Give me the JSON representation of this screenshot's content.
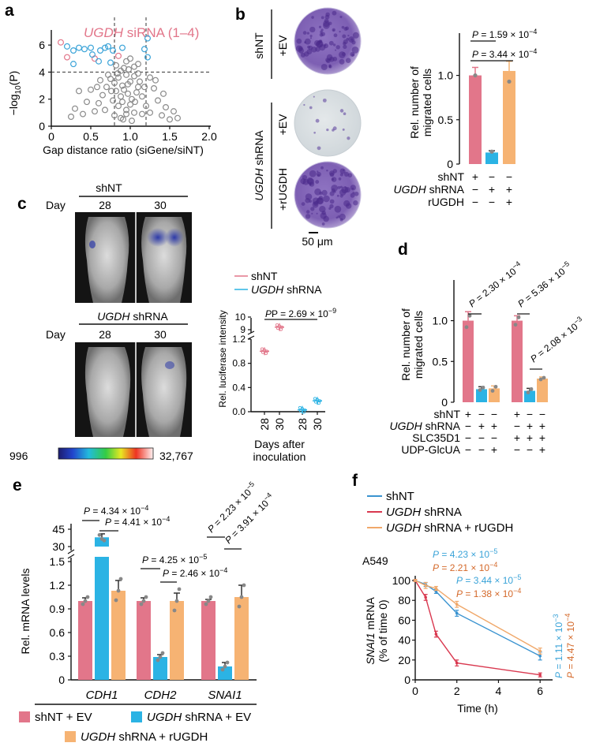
{
  "panels": {
    "a": "a",
    "b": "b",
    "c": "c",
    "d": "d",
    "e": "e",
    "f": "f"
  },
  "colors": {
    "pink": "#e2768a",
    "blue": "#2bb3e4",
    "orange": "#f6b373",
    "red": "#d9384f",
    "orange_line": "#f0a86a",
    "blue_line": "#3a93d0",
    "grey": "#8a8a8a",
    "pval_blue": "#3aa3d8",
    "pval_orange": "#d4692a"
  },
  "panel_a": {
    "title_gene": "UGDH",
    "title_rest": " siRNA (1–4)",
    "ylabel_main": "−log",
    "ylabel_sub": "10",
    "ylabel_paren": "(P)",
    "xlabel": "Gap distance ratio (siGene/siNT)",
    "xticks": [
      "0",
      "0.5",
      "1.0",
      "1.5",
      "2.0"
    ],
    "yticks": [
      "0",
      "2",
      "4",
      "6"
    ]
  },
  "panel_b": {
    "row1_group": "shNT",
    "row1_label": "+EV",
    "row2_group_italic": "UGDH",
    "row2_group_rest": " shRNA",
    "row2_label": "+EV",
    "row3_label": "+rUGDH",
    "scale_bar": "50 μm",
    "ylabel_line1": "Rel. number of",
    "ylabel_line2": "migrated cells",
    "yticks": [
      "0",
      "0.5",
      "1.0"
    ],
    "p1": "P = 1.59 × 10",
    "p1_exp": "−4",
    "p2": "P = 3.44 × 10",
    "p2_exp": "−4",
    "rows": [
      {
        "label": "shNT",
        "italic": "",
        "signs": [
          "+",
          "−",
          "−"
        ]
      },
      {
        "label": " shRNA",
        "italic": "UGDH",
        "signs": [
          "−",
          "+",
          "+"
        ]
      },
      {
        "label": "rUGDH",
        "italic": "",
        "signs": [
          "−",
          "−",
          "+"
        ]
      }
    ]
  },
  "panel_c": {
    "top_group": "shNT",
    "bottom_group_italic": "UGDH",
    "bottom_group_rest": " shRNA",
    "day_label": "Day",
    "days": [
      "28",
      "30"
    ],
    "scale_min": "996",
    "scale_max": "32,767",
    "legend": [
      {
        "name": "shNT"
      },
      {
        "name_italic": "UGDH",
        "name_rest": " shRNA"
      }
    ],
    "p": "P = 2.69 × 10",
    "p_exp": "−9",
    "ylabel": "Rel. luciferase intensity",
    "yticks_low": [
      "0.0",
      "0.4",
      "0.8",
      "1.2"
    ],
    "yticks_high": [
      "9",
      "10"
    ],
    "xticks": [
      "28",
      "30",
      "28",
      "30"
    ],
    "xlabel_line1": "Days after",
    "xlabel_line2": "inoculation"
  },
  "panel_d": {
    "ylabel_line1": "Rel. number of",
    "ylabel_line2": "migrated cells",
    "yticks": [
      "0",
      "0.5",
      "1.0"
    ],
    "pvals": [
      {
        "text": "P = 2.30 × 10",
        "exp": "−4"
      },
      {
        "text": "P = 5.36 × 10",
        "exp": "−5"
      },
      {
        "text": "P = 2.08 × 10",
        "exp": "−3"
      }
    ],
    "rows": [
      {
        "label": "shNT",
        "italic": "",
        "signs": [
          "+",
          "−",
          "−",
          "+",
          "−",
          "−"
        ]
      },
      {
        "label": " shRNA",
        "italic": "UGDH",
        "signs": [
          "−",
          "+",
          "+",
          "−",
          "+",
          "+"
        ]
      },
      {
        "label": "SLC35D1",
        "italic": "",
        "signs": [
          "−",
          "−",
          "−",
          "+",
          "+",
          "+"
        ]
      },
      {
        "label": "UDP-GlcUA",
        "italic": "",
        "signs": [
          "−",
          "−",
          "+",
          "−",
          "−",
          "+"
        ]
      }
    ]
  },
  "panel_e": {
    "ylabel": "Rel. mRNA levels",
    "yticks_low": [
      "0",
      "0.3",
      "0.6",
      "0.9",
      "1.2",
      "1.5"
    ],
    "yticks_high": [
      "30",
      "45"
    ],
    "genes": [
      "CDH1",
      "CDH2",
      "SNAI1"
    ],
    "pvals": [
      {
        "text": "P = 4.34 × 10",
        "exp": "−4"
      },
      {
        "text": "P = 4.41 × 10",
        "exp": "−4"
      },
      {
        "text": "P = 4.25 × 10",
        "exp": "−5"
      },
      {
        "text": "P = 2.46 × 10",
        "exp": "−4"
      },
      {
        "text": "P = 2.23 × 10",
        "exp": "−5"
      },
      {
        "text": "P = 3.91 × 10",
        "exp": "−4"
      }
    ],
    "legend": [
      {
        "text": "shNT + EV",
        "italic": ""
      },
      {
        "text": " shRNA + EV",
        "italic": "UGDH"
      },
      {
        "text": " shRNA + rUGDH",
        "italic": "UGDH"
      }
    ]
  },
  "panel_f": {
    "legend": [
      {
        "text": "shNT",
        "italic": ""
      },
      {
        "text": " shRNA",
        "italic": "UGDH"
      },
      {
        "text": " shRNA + rUGDH",
        "italic": "UGDH"
      }
    ],
    "cell_line": "A549",
    "ylabel_italic": "SNAI1",
    "ylabel_rest": " mRNA",
    "ylabel_line2": "(% of time 0)",
    "xlabel": "Time (h)",
    "xticks": [
      "0",
      "2",
      "4",
      "6"
    ],
    "yticks": [
      "0",
      "20",
      "40",
      "60",
      "80",
      "100"
    ],
    "pvals": [
      {
        "text": "P = 4.23 × 10",
        "exp": "−5"
      },
      {
        "text": "P = 2.21 × 10",
        "exp": "−4"
      },
      {
        "text": "P = 3.44 × 10",
        "exp": "−5"
      },
      {
        "text": "P = 1.38 × 10",
        "exp": "−4"
      },
      {
        "text": "P = 1.11 × 10",
        "exp": "−3"
      },
      {
        "text": "P = 4.47 × 10",
        "exp": "−4"
      }
    ]
  },
  "chart_data": [
    {
      "type": "scatter",
      "panel": "a",
      "xlabel": "Gap distance ratio (siGene/siNT)",
      "ylabel": "−log10(P)",
      "xlim": [
        0,
        2.0
      ],
      "ylim": [
        0,
        7
      ],
      "thresholds": {
        "x": [
          0.8,
          1.2
        ],
        "y": 4
      },
      "series": [
        {
          "name": "UGDH siRNA (1–4)",
          "points": [
            [
              0.12,
              6.2
            ],
            [
              0.2,
              5.1
            ],
            [
              0.55,
              5.0
            ],
            [
              0.85,
              5.2
            ]
          ]
        },
        {
          "points": [
            [
              0.2,
              5.9
            ],
            [
              0.28,
              5.6
            ],
            [
              0.35,
              5.8
            ],
            [
              0.42,
              5.7
            ],
            [
              0.5,
              5.8
            ],
            [
              0.62,
              5.6
            ],
            [
              0.68,
              5.8
            ],
            [
              0.72,
              5.9
            ],
            [
              0.78,
              5.6
            ],
            [
              0.52,
              5.3
            ],
            [
              0.28,
              4.6
            ],
            [
              0.6,
              4.8
            ],
            [
              1.22,
              6.5
            ],
            [
              1.18,
              5.7
            ],
            [
              1.22,
              5.1
            ],
            [
              0.9,
              5.8
            ],
            [
              0.75,
              4.7
            ]
          ]
        },
        {
          "points": [
            [
              0.75,
              3.5
            ],
            [
              0.8,
              3.2
            ],
            [
              0.85,
              3.6
            ],
            [
              0.9,
              3.0
            ],
            [
              0.95,
              3.8
            ],
            [
              1.0,
              3.3
            ],
            [
              1.05,
              3.7
            ],
            [
              1.1,
              2.9
            ],
            [
              0.82,
              2.6
            ],
            [
              0.88,
              2.2
            ],
            [
              0.92,
              2.7
            ],
            [
              0.97,
              2.4
            ],
            [
              1.02,
              2.0
            ],
            [
              1.08,
              2.5
            ],
            [
              0.78,
              1.9
            ],
            [
              0.85,
              1.5
            ],
            [
              0.9,
              1.8
            ],
            [
              0.95,
              1.2
            ],
            [
              1.0,
              1.6
            ],
            [
              1.05,
              1.0
            ],
            [
              0.8,
              0.8
            ],
            [
              0.88,
              0.6
            ],
            [
              0.95,
              0.9
            ],
            [
              1.02,
              0.4
            ],
            [
              0.7,
              2.9
            ],
            [
              0.65,
              2.3
            ],
            [
              0.6,
              1.7
            ],
            [
              0.55,
              1.1
            ],
            [
              0.5,
              2.7
            ],
            [
              0.45,
              1.8
            ],
            [
              0.4,
              0.9
            ],
            [
              0.35,
              2.6
            ],
            [
              0.3,
              1.3
            ],
            [
              0.25,
              0.7
            ],
            [
              1.15,
              2.2
            ],
            [
              1.2,
              1.5
            ],
            [
              1.25,
              1.0
            ],
            [
              1.3,
              2.8
            ],
            [
              1.35,
              1.9
            ],
            [
              1.4,
              0.8
            ],
            [
              1.45,
              1.4
            ],
            [
              1.5,
              0.5
            ],
            [
              1.55,
              1.1
            ],
            [
              1.6,
              0.6
            ],
            [
              1.32,
              3.4
            ],
            [
              1.1,
              3.9
            ],
            [
              0.72,
              3.8
            ],
            [
              0.98,
              4.2
            ],
            [
              1.05,
              4.4
            ],
            [
              0.92,
              4.3
            ],
            [
              1.1,
              4.6
            ],
            [
              0.82,
              4.5
            ],
            [
              1.0,
              5.0
            ],
            [
              0.95,
              4.8
            ],
            [
              0.88,
              4.1
            ],
            [
              1.25,
              3.6
            ],
            [
              0.62,
              3.4
            ],
            [
              0.58,
              2.9
            ],
            [
              1.42,
              2.4
            ],
            [
              0.68,
              1.2
            ],
            [
              1.15,
              0.9
            ],
            [
              0.97,
              3.1
            ],
            [
              0.84,
              3.9
            ],
            [
              1.12,
              3.3
            ],
            [
              0.76,
              2.6
            ],
            [
              1.06,
              1.8
            ],
            [
              0.91,
              0.5
            ],
            [
              1.18,
              2.9
            ]
          ]
        }
      ]
    },
    {
      "type": "bar",
      "panel": "b",
      "ylabel": "Rel. number of migrated cells",
      "ylim": [
        0,
        1.45
      ],
      "categories": [
        "shNT+EV",
        "UGDH shRNA+EV",
        "UGDH shRNA+rUGDH"
      ],
      "values": [
        1.0,
        0.13,
        1.05
      ],
      "errors": [
        0.09,
        0.02,
        0.11
      ],
      "points": [
        [
          1.0
        ],
        [
          0.14
        ],
        [
          0.93
        ]
      ]
    },
    {
      "type": "scatter",
      "panel": "c",
      "ylabel": "Rel. luciferase intensity",
      "xlabel": "Days after inoculation",
      "categories": [
        "28",
        "30",
        "28",
        "30"
      ],
      "series": [
        {
          "name": "shNT",
          "values": [
            1.0,
            9.2
          ]
        },
        {
          "name": "UGDH shRNA",
          "values": [
            0.03,
            0.18
          ]
        }
      ]
    },
    {
      "type": "bar",
      "panel": "d",
      "ylabel": "Rel. number of migrated cells",
      "ylim": [
        0,
        1.45
      ],
      "values": [
        1.0,
        0.16,
        0.17,
        1.0,
        0.14,
        0.29
      ],
      "errors": [
        0.11,
        0.03,
        0.03,
        0.06,
        0.03,
        0.02
      ],
      "points": [
        [
          0.92,
          1.06
        ],
        [
          0.15,
          0.18
        ],
        [
          0.14,
          0.19
        ],
        [
          0.95,
          1.04
        ],
        [
          0.12,
          0.16
        ],
        [
          0.28,
          0.3
        ]
      ]
    },
    {
      "type": "bar",
      "panel": "e",
      "ylabel": "Rel. mRNA levels",
      "categories": [
        "CDH1",
        "CDH2",
        "SNAI1"
      ],
      "series": [
        {
          "name": "shNT + EV",
          "values": [
            1.0,
            1.0,
            1.0
          ],
          "errors": [
            0.04,
            0.04,
            0.02
          ]
        },
        {
          "name": "UGDH shRNA + EV",
          "values": [
            38.0,
            0.29,
            0.17
          ],
          "errors": [
            3.0,
            0.03,
            0.05
          ]
        },
        {
          "name": "UGDH shRNA + rUGDH",
          "values": [
            1.13,
            1.0,
            1.05
          ],
          "errors": [
            0.13,
            0.1,
            0.15
          ]
        }
      ]
    },
    {
      "type": "line",
      "panel": "f",
      "xlabel": "Time (h)",
      "ylabel": "SNAI1 mRNA (% of time 0)",
      "x": [
        0,
        0.5,
        1,
        2,
        6
      ],
      "xlim": [
        0,
        6.6
      ],
      "ylim": [
        0,
        100
      ],
      "series": [
        {
          "name": "shNT",
          "values": [
            100,
            96,
            89,
            67,
            24
          ],
          "errors": [
            1,
            2,
            2,
            3,
            4
          ]
        },
        {
          "name": "UGDH shRNA",
          "values": [
            100,
            83,
            46,
            17,
            5
          ],
          "errors": [
            1,
            3,
            3,
            3,
            2
          ]
        },
        {
          "name": "UGDH shRNA + rUGDH",
          "values": [
            100,
            95,
            92,
            76,
            29
          ],
          "errors": [
            1,
            3,
            2,
            3,
            3
          ]
        }
      ]
    }
  ]
}
